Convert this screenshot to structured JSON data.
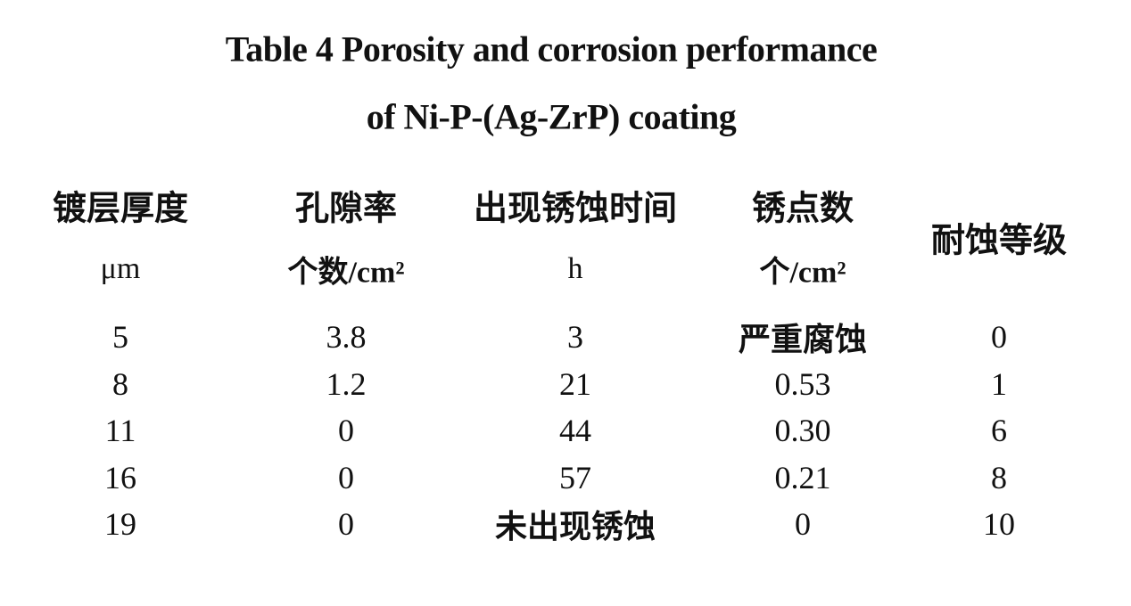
{
  "title": [
    "Table 4 Porosity and corrosion performance",
    "of Ni-P-(Ag-ZrP) coating"
  ],
  "table": {
    "header": [
      [
        "镀层厚度",
        "μm"
      ],
      [
        "孔隙率",
        "个数/cm²"
      ],
      [
        "出现锈蚀时间",
        "h"
      ],
      [
        "锈点数",
        "个/cm²"
      ],
      [
        "耐蚀等级"
      ]
    ],
    "rows": [
      [
        "5",
        "3.8",
        "3",
        "严重腐蚀",
        "0"
      ],
      [
        "8",
        "1.2",
        "21",
        "0.53",
        "1"
      ],
      [
        "11",
        "0",
        "44",
        "0.30",
        "6"
      ],
      [
        "16",
        "0",
        "57",
        "0.21",
        "8"
      ],
      [
        "19",
        "0",
        "未出现锈蚀",
        "0",
        "10"
      ]
    ]
  }
}
